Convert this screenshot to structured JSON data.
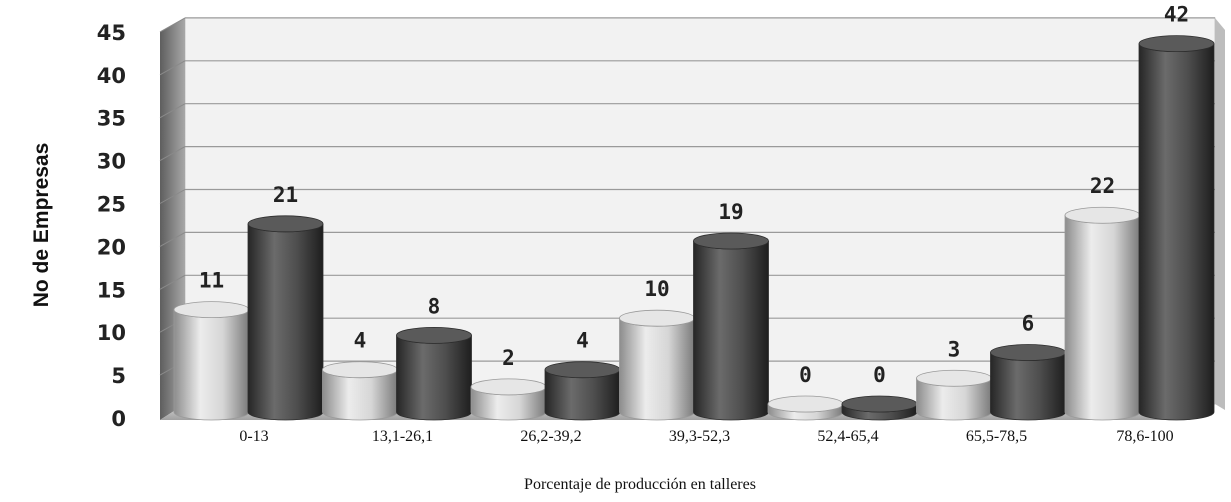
{
  "chart_data": {
    "type": "bar",
    "categories": [
      "0-13",
      "13,1-26,1",
      "26,2-39,2",
      "39,3-52,3",
      "52,4-65,4",
      "65,5-78,5",
      "78,6-100"
    ],
    "series": [
      {
        "values": [
          11,
          4,
          2,
          10,
          0,
          3,
          22
        ],
        "color": "#d2d2d2"
      },
      {
        "values": [
          21,
          8,
          4,
          19,
          0,
          6,
          42
        ],
        "color": "#4a4a4a"
      }
    ],
    "data_labels": [
      [
        "11",
        "4",
        "2",
        "10",
        "0",
        "3",
        "22"
      ],
      [
        "21",
        "8",
        "4",
        "19",
        "0",
        "6",
        "42"
      ]
    ],
    "yticks": [
      "0",
      "5",
      "10",
      "15",
      "20",
      "25",
      "30",
      "35",
      "40",
      "45"
    ],
    "ylim": [
      0,
      45
    ],
    "ylabel": "No de Empresas",
    "xlabel": "Porcentaje de producción en talleres",
    "grid": true,
    "style": "3d-cylinder"
  }
}
